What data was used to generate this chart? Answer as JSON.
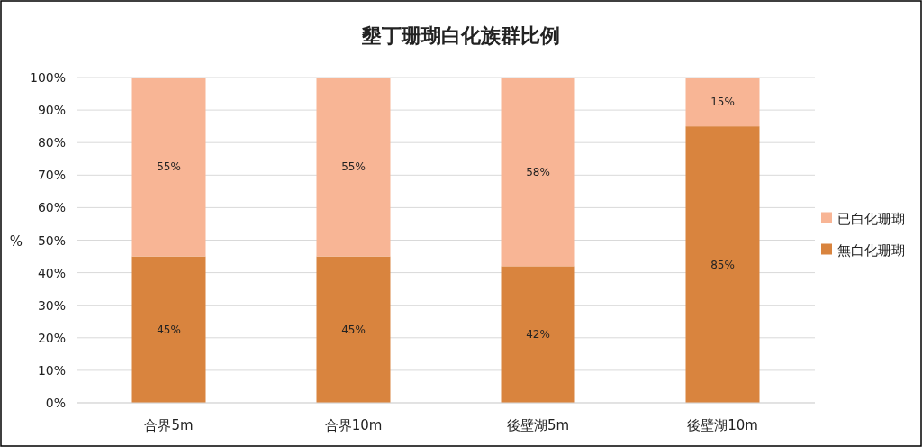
{
  "chart_data": {
    "type": "bar",
    "title": "墾丁珊瑚白化族群比例",
    "ylabel": "%",
    "stacked": true,
    "categories": [
      "合界5m",
      "合界10m",
      "後壁湖5m",
      "後壁湖10m"
    ],
    "series": [
      {
        "name": "無白化珊瑚",
        "color": "#d9843e",
        "values": [
          45,
          45,
          42,
          85
        ],
        "value_labels": [
          "45%",
          "45%",
          "42%",
          "85%"
        ]
      },
      {
        "name": "已白化珊瑚",
        "color": "#f8b595",
        "values": [
          55,
          55,
          58,
          15
        ],
        "value_labels": [
          "55%",
          "55%",
          "58%",
          "15%"
        ]
      }
    ],
    "ylim": [
      0,
      100
    ],
    "yticks": [
      {
        "value": 0,
        "label": "0%"
      },
      {
        "value": 10,
        "label": "10%"
      },
      {
        "value": 20,
        "label": "20%"
      },
      {
        "value": 30,
        "label": "30%"
      },
      {
        "value": 40,
        "label": "40%"
      },
      {
        "value": 50,
        "label": "50%"
      },
      {
        "value": 60,
        "label": "60%"
      },
      {
        "value": 70,
        "label": "70%"
      },
      {
        "value": 80,
        "label": "80%"
      },
      {
        "value": 90,
        "label": "90%"
      },
      {
        "value": 100,
        "label": "100%"
      }
    ],
    "grid": "y",
    "legend": "right"
  }
}
